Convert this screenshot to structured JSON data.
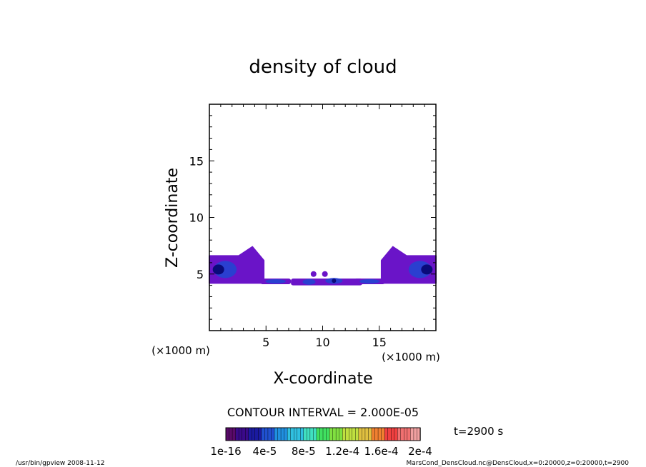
{
  "chart_data": {
    "type": "heatmap",
    "title": "density of cloud",
    "xlabel": "X-coordinate",
    "ylabel": "Z-coordinate",
    "x_unit": "(×1000 m)",
    "y_unit": "(×1000 m)",
    "xlim": [
      0,
      20
    ],
    "ylim": [
      0,
      20
    ],
    "x_ticks": [
      5,
      10,
      15
    ],
    "y_ticks": [
      5,
      10,
      15
    ],
    "contour_interval": "CONTOUR INTERVAL = 2.000E-05",
    "time_label": "t=2900 s",
    "colorbar": {
      "tick_labels": [
        "1e-16",
        "4e-5",
        "8e-5",
        "1.2e-4",
        "1.6e-4",
        "2e-4"
      ],
      "range": [
        0,
        0.0002
      ]
    },
    "cloud_regions": [
      {
        "x": [
          0,
          4.8
        ],
        "z": [
          4.2,
          7.4
        ],
        "peak_x": 0.8,
        "peak_z": 5.4,
        "level": "high"
      },
      {
        "x": [
          4.5,
          7.2
        ],
        "z": [
          4.1,
          4.6
        ],
        "level": "low"
      },
      {
        "x": [
          7.2,
          13.5
        ],
        "z": [
          4.0,
          5.1
        ],
        "peak_x": 11,
        "peak_z": 4.4,
        "level": "medium"
      },
      {
        "x": [
          12.8,
          15.5
        ],
        "z": [
          4.1,
          4.6
        ],
        "level": "low"
      },
      {
        "x": [
          15.2,
          20
        ],
        "z": [
          4.2,
          7.4
        ],
        "peak_x": 19.2,
        "peak_z": 5.4,
        "level": "high"
      }
    ]
  },
  "footer": {
    "left": "/usr/bin/gpview   2008-11-12",
    "right": "MarsCond_DensCloud.nc@DensCloud,x=0:20000,z=0:20000,t=2900"
  },
  "colors": {
    "low": "#6a14c8",
    "mid": "#2a3fd0",
    "high": "#0a0a7a",
    "peak": "#000033",
    "colorbar": [
      "#5a0a6a",
      "#3a0a8a",
      "#1a1aa0",
      "#2050d0",
      "#2090e0",
      "#30c0e0",
      "#40e0c0",
      "#40e060",
      "#80e040",
      "#c0e040",
      "#e0c040",
      "#f08030",
      "#f04040",
      "#f07070",
      "#f0a0a0"
    ]
  }
}
